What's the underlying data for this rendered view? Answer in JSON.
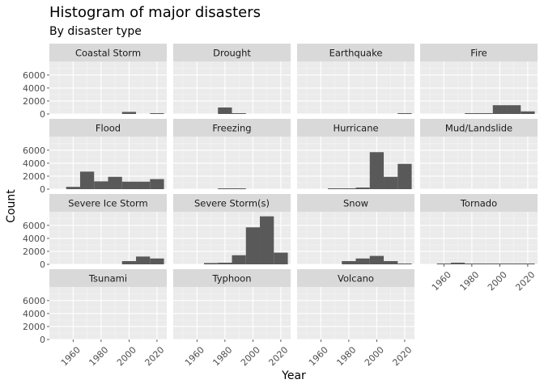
{
  "chart_data": {
    "type": "bar",
    "title": "Histogram of major disasters",
    "subtitle": "By disaster type",
    "xlabel": "Year",
    "ylabel": "Count",
    "xlim": [
      1943,
      2027
    ],
    "ylim": [
      0,
      8100
    ],
    "x_ticks": [
      1960,
      1980,
      2000,
      2020
    ],
    "y_ticks": [
      0,
      2000,
      4000,
      6000
    ],
    "bins": [
      [
        1945,
        1955
      ],
      [
        1955,
        1965
      ],
      [
        1965,
        1975
      ],
      [
        1975,
        1985
      ],
      [
        1985,
        1995
      ],
      [
        1995,
        2005
      ],
      [
        2005,
        2015
      ],
      [
        2015,
        2025
      ]
    ],
    "facet_layout": {
      "ncol": 4
    },
    "colors": {
      "bar": "#595959",
      "panel": "#ebebeb",
      "strip": "#d9d9d9",
      "grid_major": "#ffffff",
      "grid_minor": "#f5f5f5"
    },
    "facets": [
      {
        "name": "Coastal Storm",
        "values": [
          0,
          0,
          0,
          0,
          0,
          320,
          0,
          80
        ]
      },
      {
        "name": "Drought",
        "values": [
          0,
          0,
          0,
          1000,
          60,
          0,
          0,
          0
        ]
      },
      {
        "name": "Earthquake",
        "values": [
          0,
          0,
          0,
          0,
          0,
          0,
          0,
          80
        ]
      },
      {
        "name": "Fire",
        "values": [
          0,
          0,
          0,
          30,
          120,
          1350,
          1350,
          400
        ]
      },
      {
        "name": "Flood",
        "values": [
          0,
          350,
          2700,
          1200,
          1900,
          1150,
          1150,
          1550
        ]
      },
      {
        "name": "Freezing",
        "values": [
          0,
          0,
          0,
          50,
          50,
          0,
          0,
          0
        ]
      },
      {
        "name": "Hurricane",
        "values": [
          0,
          0,
          50,
          60,
          250,
          5700,
          1900,
          3900
        ]
      },
      {
        "name": "Mud/Landslide",
        "values": [
          0,
          0,
          0,
          0,
          0,
          0,
          0,
          0
        ]
      },
      {
        "name": "Severe Ice Storm",
        "values": [
          0,
          0,
          0,
          0,
          0,
          500,
          1200,
          900
        ]
      },
      {
        "name": "Severe Storm(s)",
        "values": [
          0,
          0,
          200,
          250,
          1400,
          5700,
          7400,
          1800
        ]
      },
      {
        "name": "Snow",
        "values": [
          0,
          0,
          0,
          500,
          900,
          1300,
          500,
          100
        ]
      },
      {
        "name": "Tornado",
        "values": [
          0,
          100,
          250,
          50,
          120,
          50,
          30,
          80
        ]
      },
      {
        "name": "Tsunami",
        "values": [
          0,
          0,
          0,
          0,
          0,
          0,
          0,
          0
        ]
      },
      {
        "name": "Typhoon",
        "values": [
          0,
          0,
          0,
          0,
          0,
          0,
          0,
          0
        ]
      },
      {
        "name": "Volcano",
        "values": [
          0,
          0,
          0,
          0,
          0,
          0,
          0,
          0
        ]
      }
    ]
  }
}
